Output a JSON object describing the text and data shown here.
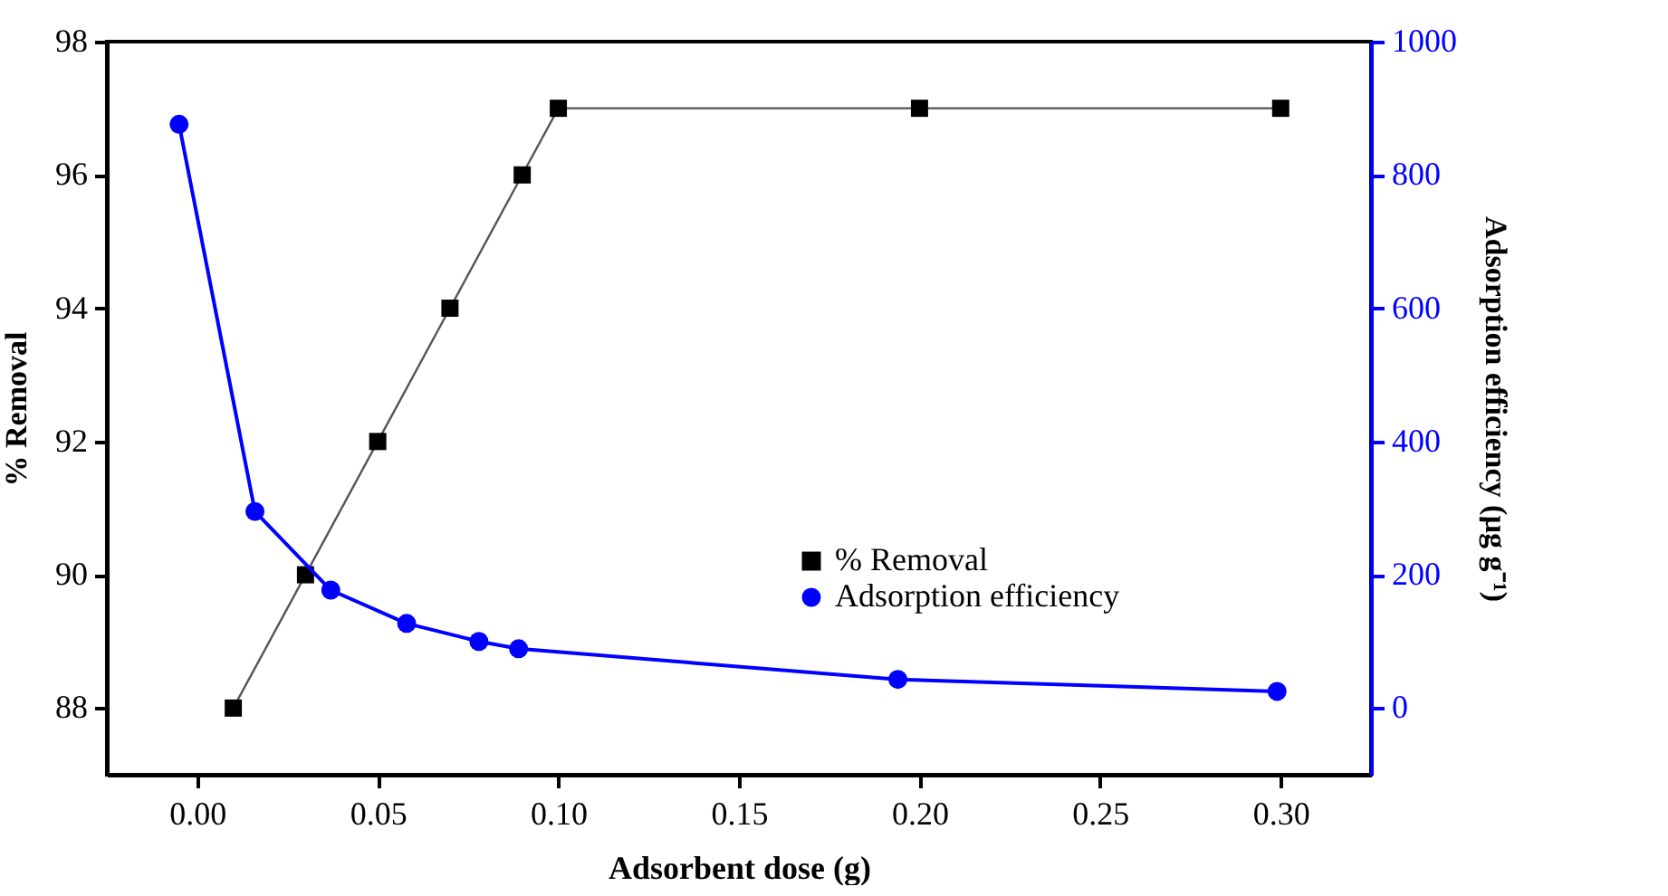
{
  "chart_data": {
    "type": "line",
    "xlabel": "Adsorbent dose (g)",
    "ylabel": "% Removal",
    "y2label": "Adsorption efficiency (µg g⁻¹)",
    "xlim": [
      -0.025,
      0.325
    ],
    "xticks": [
      {
        "value": 0,
        "label": "0.00"
      },
      {
        "value": 0.05,
        "label": "0.05"
      },
      {
        "value": 0.1,
        "label": "0.10"
      },
      0.15,
      {
        "value": 0.2,
        "label": "0.20"
      },
      0.25,
      {
        "value": 0.3,
        "label": "0.30"
      }
    ],
    "ylim": [
      87,
      98
    ],
    "yticks": [
      88,
      90,
      92,
      94,
      96,
      98
    ],
    "y2lim": [
      -100,
      1000
    ],
    "y2ticks": [
      0,
      200,
      400,
      600,
      800,
      1000
    ],
    "legend": "bottom right",
    "grid": false,
    "line_style": "solid",
    "series": [
      {
        "name": "% Removal",
        "color": "#000000",
        "marker": "square",
        "x": [
          0.01,
          0.03,
          0.05,
          0.07,
          0.09,
          0.1,
          0.2,
          0.3
        ],
        "values": [
          88,
          90,
          92,
          94,
          96,
          97,
          97,
          97
        ]
      },
      {
        "name": "Adsorption efficiency",
        "color": "#0000ff",
        "marker": "circle",
        "axis": "y2",
        "x": [
          -0.005,
          0.016,
          0.037,
          0.058,
          0.078,
          0.089,
          0.194,
          0.299
        ],
        "values": [
          876,
          295,
          177,
          127,
          100,
          89,
          43,
          25
        ]
      }
    ]
  }
}
